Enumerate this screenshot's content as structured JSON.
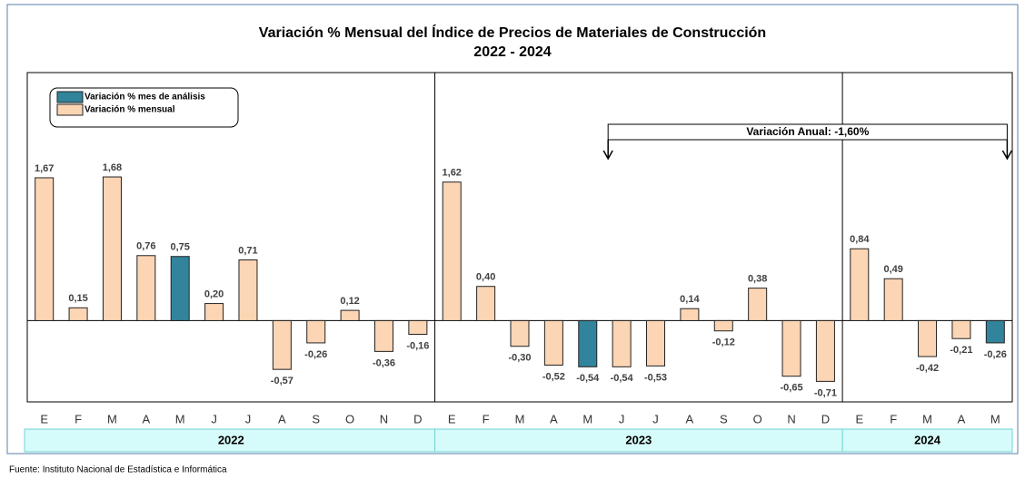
{
  "chart_data": {
    "type": "bar",
    "title": "Variación % Mensual del Índice de Precios de Materiales de Construcción",
    "subtitle": "2022 - 2024",
    "categories": [
      "E",
      "F",
      "M",
      "A",
      "M",
      "J",
      "J",
      "A",
      "S",
      "O",
      "N",
      "D",
      "E",
      "F",
      "M",
      "A",
      "M",
      "J",
      "J",
      "A",
      "S",
      "O",
      "N",
      "D",
      "E",
      "F",
      "M",
      "A",
      "M"
    ],
    "groups": [
      "2022",
      "2023",
      "2024"
    ],
    "series": [
      {
        "name": "Variación % mes de análisis",
        "color": "#31849b",
        "values": [
          null,
          null,
          null,
          null,
          0.75,
          null,
          null,
          null,
          null,
          null,
          null,
          null,
          null,
          null,
          null,
          null,
          -0.54,
          null,
          null,
          null,
          null,
          null,
          null,
          null,
          null,
          null,
          null,
          null,
          -0.26
        ],
        "value_labels": [
          null,
          null,
          null,
          null,
          "0,75",
          null,
          null,
          null,
          null,
          null,
          null,
          null,
          null,
          null,
          null,
          null,
          "-0,54",
          null,
          null,
          null,
          null,
          null,
          null,
          null,
          null,
          null,
          null,
          null,
          "-0,26"
        ]
      },
      {
        "name": "Variación % mensual",
        "color": "#fcd5b4",
        "values": [
          1.67,
          0.15,
          1.68,
          0.76,
          null,
          0.2,
          0.71,
          -0.57,
          -0.26,
          0.12,
          -0.36,
          -0.16,
          1.62,
          0.4,
          -0.3,
          -0.52,
          null,
          -0.54,
          -0.53,
          0.14,
          -0.12,
          0.38,
          -0.65,
          -0.71,
          0.84,
          0.49,
          -0.42,
          -0.21,
          null
        ],
        "value_labels": [
          "1,67",
          "0,15",
          "1,68",
          "0,76",
          null,
          "0,20",
          "0,71",
          "-0,57",
          "-0,26",
          "0,12",
          "-0,36",
          "-0,16",
          "1,62",
          "0,40",
          "-0,30",
          "-0,52",
          null,
          "-0,54",
          "-0,53",
          "0,14",
          "-0,12",
          "0,38",
          "-0,65",
          "-0,71",
          "0,84",
          "0,49",
          "-0,42",
          "-0,21",
          null
        ]
      }
    ],
    "ylim": [
      -0.95,
      2.9
    ],
    "annotation": "Variación Anual: -1,60%",
    "source": "Fuente: Instituto  Nacional de Estadística  e Informática"
  }
}
